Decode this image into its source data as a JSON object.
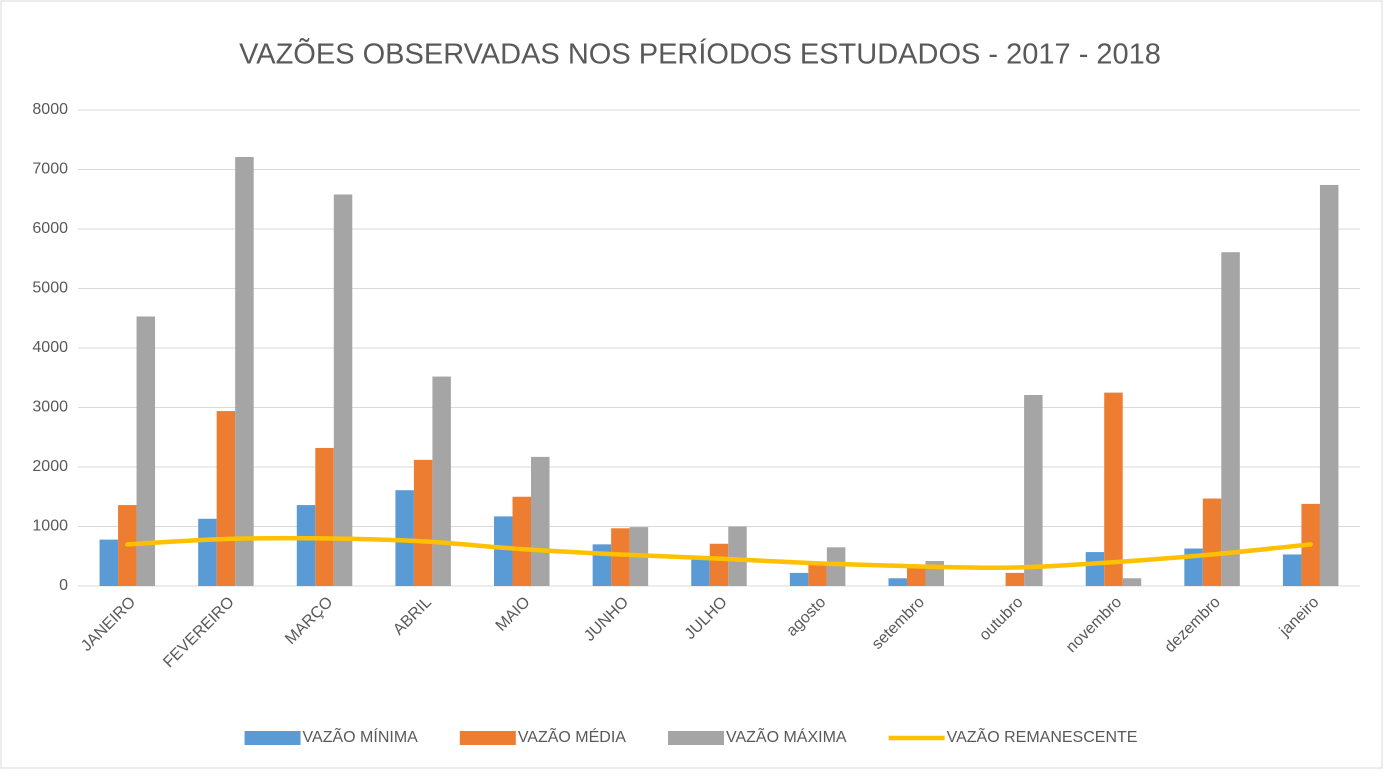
{
  "chart_data": {
    "type": "bar",
    "title": "VAZÕES OBSERVADAS NOS PERÍODOS ESTUDADOS - 2017 - 2018",
    "categories": [
      "JANEIRO",
      "FEVEREIRO",
      "MARÇO",
      "ABRIL",
      "MAIO",
      "JUNHO",
      "JULHO",
      "agosto",
      "setembro",
      "outubro",
      "novembro",
      "dezembro",
      "janeiro"
    ],
    "series": [
      {
        "name": "VAZÃO MÍNIMA",
        "color": "#5b9bd5",
        "values": [
          780,
          1130,
          1360,
          1610,
          1170,
          700,
          450,
          220,
          130,
          0,
          570,
          630,
          530
        ]
      },
      {
        "name": "VAZÃO MÉDIA",
        "color": "#ed7d31",
        "values": [
          1360,
          2940,
          2320,
          2120,
          1500,
          970,
          710,
          400,
          330,
          220,
          3250,
          1470,
          1380
        ]
      },
      {
        "name": "VAZÃO MÁXIMA",
        "color": "#a5a5a5",
        "values": [
          4530,
          7210,
          6580,
          3520,
          2170,
          990,
          1000,
          650,
          420,
          3210,
          130,
          5610,
          6740
        ]
      },
      {
        "name": "VAZÃO REMANESCENTE",
        "color": "#ffc000",
        "type": "line",
        "values": [
          700,
          790,
          800,
          750,
          620,
          530,
          460,
          380,
          330,
          310,
          400,
          530,
          700
        ]
      }
    ],
    "ylim": [
      0,
      8000
    ],
    "yticks": [
      0,
      1000,
      2000,
      3000,
      4000,
      5000,
      6000,
      7000,
      8000
    ],
    "grid": true,
    "legend": "bottom"
  }
}
